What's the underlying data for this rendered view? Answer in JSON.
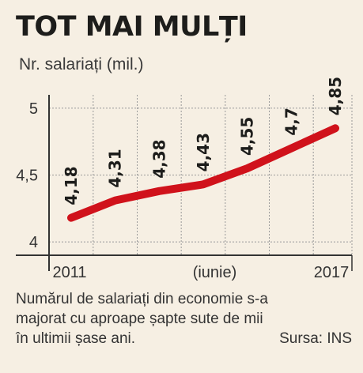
{
  "title": "TOT MAI MULȚI",
  "subtitle": "Nr. salariați (mil.)",
  "chart_data": {
    "type": "line",
    "x": [
      2011,
      2012,
      2013,
      2014,
      2015,
      2016,
      2017
    ],
    "values": [
      4.18,
      4.31,
      4.38,
      4.43,
      4.55,
      4.7,
      4.85
    ],
    "data_labels": [
      "4,18",
      "4,31",
      "4,38",
      "4,43",
      "4,55",
      "4,7",
      "4,85"
    ],
    "x_tick_labels": [
      "2011",
      "(iunie)",
      "2017"
    ],
    "y_ticks": [
      4,
      4.5,
      5
    ],
    "y_tick_labels": [
      "4",
      "4,5",
      "5"
    ],
    "ylim": [
      3.9,
      5.1
    ],
    "xlim": [
      2011,
      2017
    ],
    "grid": true,
    "line_color": "#d0121b"
  },
  "caption": {
    "line1": "Numărul de salariați din economie s-a",
    "line2": "majorat cu aproape șapte sute de mii",
    "line3": "în ultimii șase ani.",
    "source": "Sursa: INS"
  }
}
